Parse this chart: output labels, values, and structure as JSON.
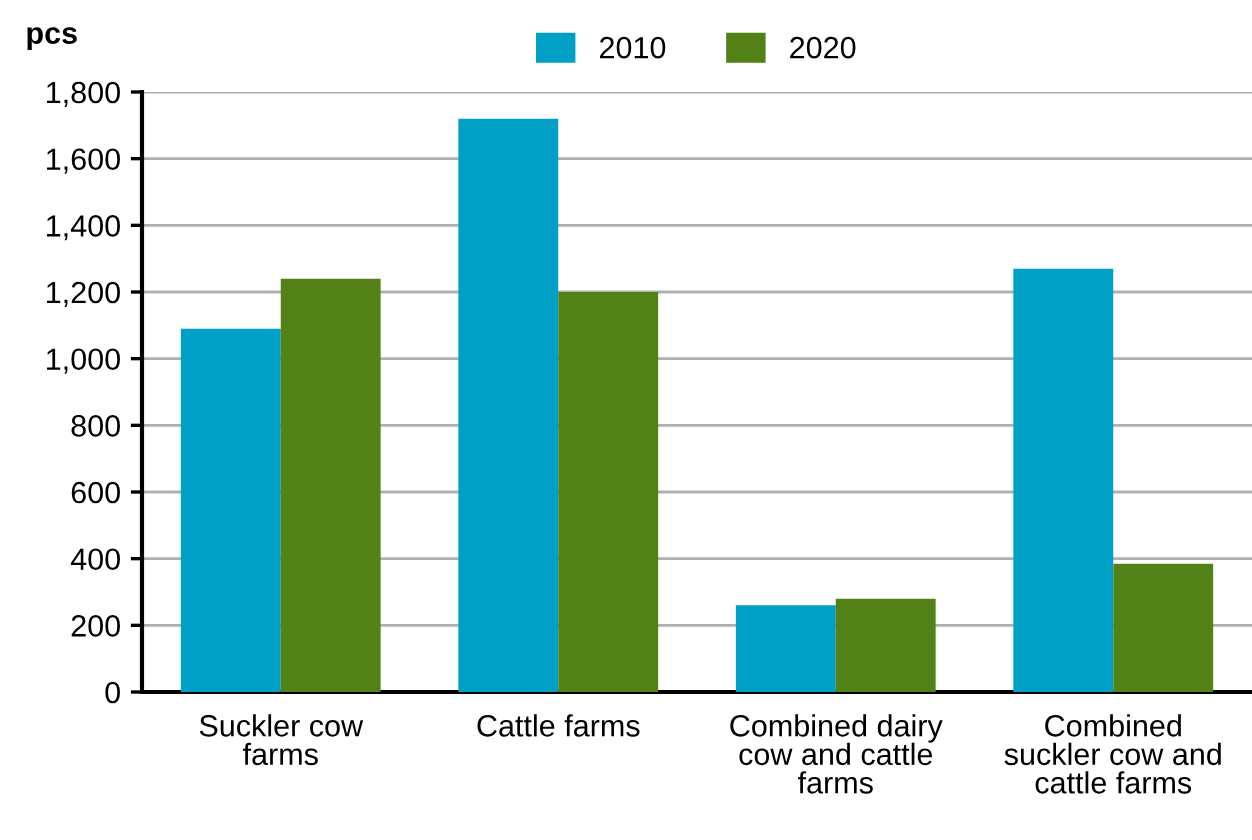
{
  "chart_data": {
    "type": "bar",
    "ylabel": "pcs",
    "categories": [
      "Suckler cow farms",
      "Cattle farms",
      "Combined dairy cow and cattle farms",
      "Combined suckler cow and cattle farms"
    ],
    "series": [
      {
        "name": "2010",
        "color": "#00a0c6",
        "values": [
          1090,
          1720,
          260,
          1270
        ]
      },
      {
        "name": "2020",
        "color": "#528217",
        "values": [
          1240,
          1200,
          280,
          385
        ]
      }
    ],
    "ylim": [
      0,
      1800
    ],
    "yticks": [
      0,
      200,
      400,
      600,
      800,
      {
        "value": 1000,
        "label": "1,000"
      },
      {
        "value": 1200,
        "label": "1,200"
      },
      {
        "value": 1400,
        "label": "1,400"
      },
      {
        "value": 1600,
        "label": "1,600"
      },
      {
        "value": 1800,
        "label": "1,800"
      }
    ],
    "grid": "y",
    "legend": "top"
  }
}
